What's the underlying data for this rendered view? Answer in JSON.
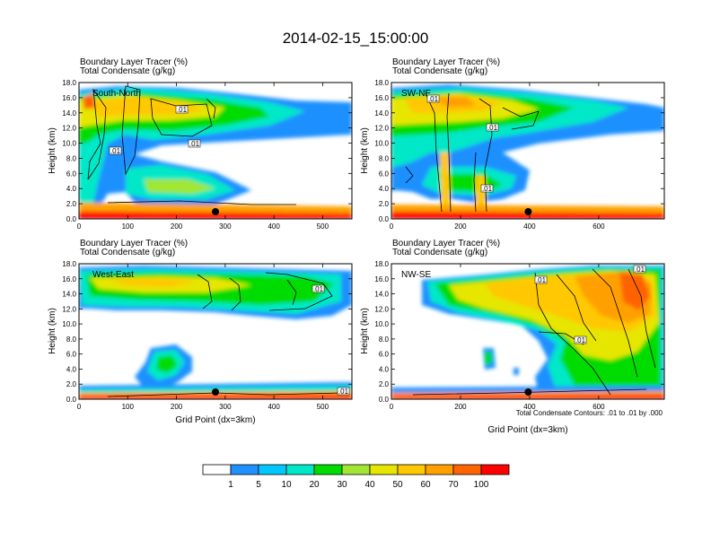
{
  "page_title": "2014-02-15_15:00:00",
  "chart_data": {
    "type": "heatmap",
    "title": "2014-02-15_15:00:00",
    "fill_variable": "Boundary Layer Tracer (%)",
    "contour_variable": "Total Condensate (g/kg)",
    "contour_note": "Total Condensate Contours: .01 to .01 by .000",
    "ylabel": "Height (km)",
    "xlabel": "Grid Point (dx=3km)",
    "yticks": [
      "0.0",
      "2.0",
      "4.0",
      "6.0",
      "8.0",
      "10.0",
      "12.0",
      "14.0",
      "16.0",
      "18.0"
    ],
    "ylim": [
      0,
      18
    ],
    "colorbar": {
      "colors": [
        "#ffffff",
        "#1e90ff",
        "#00c8ff",
        "#00e8c8",
        "#00dc00",
        "#a0e632",
        "#e6e600",
        "#ffc800",
        "#ffa000",
        "#ff6400",
        "#ff0000"
      ],
      "labels": [
        "1",
        "5",
        "10",
        "20",
        "30",
        "40",
        "50",
        "60",
        "70",
        "100"
      ]
    },
    "panels": [
      {
        "name": "South-North",
        "line1": "Boundary Layer Tracer   (%)",
        "line2": "Total Condensate   (g/kg)",
        "xlim": [
          0,
          560
        ],
        "xticks": [
          "0",
          "100",
          "200",
          "300",
          "400",
          "500"
        ],
        "xvals": [
          0,
          100,
          200,
          300,
          400,
          500
        ],
        "marker_x": 280,
        "contour_labels": [
          ".01",
          ".01",
          ".01"
        ]
      },
      {
        "name": "SW-NE",
        "line1": "Boundary Layer Tracer   (%)",
        "line2": "Total Condensate   (g/kg)",
        "xlim": [
          0,
          790
        ],
        "xticks": [
          "0",
          "200",
          "400",
          "600"
        ],
        "xvals": [
          0,
          200,
          400,
          600
        ],
        "marker_x": 396,
        "contour_labels": [
          ".01",
          ".01",
          ".01"
        ]
      },
      {
        "name": "West-East",
        "line1": "Boundary Layer Tracer   (%)",
        "line2": "Total Condensate   (g/kg)",
        "xlim": [
          0,
          560
        ],
        "xticks": [
          "0",
          "100",
          "200",
          "300",
          "400",
          "500"
        ],
        "xvals": [
          0,
          100,
          200,
          300,
          400,
          500
        ],
        "marker_x": 280,
        "contour_labels": [
          ".01",
          ".01"
        ]
      },
      {
        "name": "NW-SE",
        "line1": "Boundary Layer Tracer   (%)",
        "line2": "Total Condensate   (g/kg)",
        "xlim": [
          0,
          790
        ],
        "xticks": [
          "0",
          "200",
          "400",
          "600"
        ],
        "xvals": [
          0,
          200,
          400,
          600
        ],
        "marker_x": 396,
        "contour_labels": [
          ".01",
          ".01",
          ".01"
        ]
      }
    ]
  }
}
